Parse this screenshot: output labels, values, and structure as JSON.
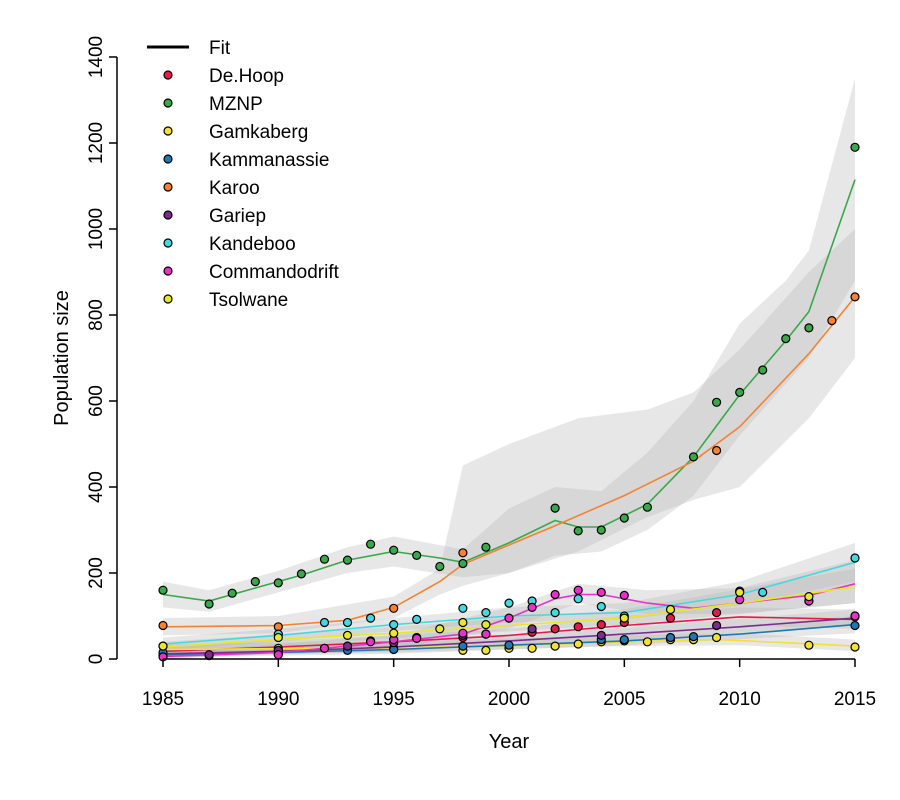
{
  "chart_data": {
    "type": "scatter",
    "title": "",
    "xlabel": "Year",
    "ylabel": "Population size",
    "xlim": [
      1985,
      2015
    ],
    "ylim": [
      0,
      1400
    ],
    "x_ticks": [
      1985,
      1990,
      1995,
      2000,
      2005,
      2010,
      2015
    ],
    "y_ticks": [
      0,
      200,
      400,
      600,
      800,
      1000,
      1200,
      1400
    ],
    "grid": false,
    "legend_position": "top-left",
    "legend_fit_label": "Fit",
    "series": [
      {
        "name": "De.Hoop",
        "color": "#e6194b",
        "points": [
          [
            1985,
            8
          ],
          [
            1987,
            8
          ],
          [
            1990,
            12
          ],
          [
            1992,
            25
          ],
          [
            1993,
            30
          ],
          [
            1994,
            42
          ],
          [
            1995,
            45
          ],
          [
            1996,
            50
          ],
          [
            1998,
            50
          ],
          [
            1999,
            58
          ],
          [
            2001,
            62
          ],
          [
            2002,
            70
          ],
          [
            2003,
            75
          ],
          [
            2004,
            80
          ],
          [
            2005,
            85
          ],
          [
            2007,
            95
          ],
          [
            2009,
            108
          ],
          [
            2015,
            98
          ]
        ],
        "fit": [
          [
            1985,
            18
          ],
          [
            1990,
            28
          ],
          [
            1995,
            40
          ],
          [
            2000,
            55
          ],
          [
            2005,
            78
          ],
          [
            2010,
            98
          ],
          [
            2015,
            92
          ]
        ],
        "band": [
          [
            1985,
            8,
            30
          ],
          [
            1995,
            25,
            55
          ],
          [
            2000,
            40,
            70
          ],
          [
            2005,
            60,
            100
          ],
          [
            2010,
            78,
            120
          ],
          [
            2015,
            70,
            115
          ]
        ]
      },
      {
        "name": "MZNP",
        "color": "#3aa84a",
        "points": [
          [
            1985,
            160
          ],
          [
            1987,
            128
          ],
          [
            1988,
            153
          ],
          [
            1989,
            180
          ],
          [
            1990,
            177
          ],
          [
            1991,
            198
          ],
          [
            1992,
            232
          ],
          [
            1993,
            230
          ],
          [
            1994,
            267
          ],
          [
            1995,
            253
          ],
          [
            1996,
            241
          ],
          [
            1997,
            215
          ],
          [
            1998,
            222
          ],
          [
            1999,
            260
          ],
          [
            2002,
            351
          ],
          [
            2003,
            298
          ],
          [
            2004,
            300
          ],
          [
            2005,
            328
          ],
          [
            2006,
            353
          ],
          [
            2008,
            470
          ],
          [
            2009,
            597
          ],
          [
            2010,
            620
          ],
          [
            2011,
            672
          ],
          [
            2012,
            745
          ],
          [
            2013,
            770
          ],
          [
            2015,
            1190
          ]
        ],
        "fit": [
          [
            1985,
            150
          ],
          [
            1987,
            135
          ],
          [
            1989,
            165
          ],
          [
            1991,
            195
          ],
          [
            1993,
            230
          ],
          [
            1995,
            250
          ],
          [
            1997,
            235
          ],
          [
            1998,
            225
          ],
          [
            2000,
            270
          ],
          [
            2002,
            322
          ],
          [
            2003,
            307
          ],
          [
            2004,
            307
          ],
          [
            2006,
            360
          ],
          [
            2008,
            470
          ],
          [
            2010,
            615
          ],
          [
            2012,
            740
          ],
          [
            2013,
            808
          ],
          [
            2015,
            1115
          ]
        ],
        "band": [
          [
            1985,
            120,
            180
          ],
          [
            1987,
            110,
            160
          ],
          [
            1990,
            155,
            205
          ],
          [
            1993,
            200,
            260
          ],
          [
            1995,
            215,
            285
          ],
          [
            1998,
            190,
            255
          ],
          [
            2000,
            200,
            350
          ],
          [
            2002,
            240,
            400
          ],
          [
            2004,
            250,
            390
          ],
          [
            2006,
            300,
            480
          ],
          [
            2008,
            380,
            600
          ],
          [
            2010,
            520,
            780
          ],
          [
            2012,
            640,
            880
          ],
          [
            2013,
            700,
            950
          ],
          [
            2015,
            880,
            1350
          ]
        ]
      },
      {
        "name": "Gamkaberg",
        "color": "#f5e130",
        "points": [
          [
            1985,
            30
          ],
          [
            1990,
            25
          ],
          [
            1993,
            28
          ],
          [
            1995,
            25
          ],
          [
            1998,
            20
          ],
          [
            1999,
            20
          ],
          [
            2000,
            25
          ],
          [
            2001,
            25
          ],
          [
            2002,
            30
          ],
          [
            2003,
            35
          ],
          [
            2004,
            40
          ],
          [
            2005,
            42
          ],
          [
            2006,
            40
          ],
          [
            2007,
            45
          ],
          [
            2008,
            45
          ],
          [
            2009,
            50
          ],
          [
            2013,
            32
          ],
          [
            2015,
            28
          ]
        ],
        "fit": [
          [
            1985,
            22
          ],
          [
            1995,
            26
          ],
          [
            2000,
            30
          ],
          [
            2005,
            40
          ],
          [
            2009,
            45
          ],
          [
            2012,
            38
          ],
          [
            2015,
            30
          ]
        ],
        "band": [
          [
            1985,
            10,
            35
          ],
          [
            1995,
            15,
            40
          ],
          [
            2005,
            30,
            55
          ],
          [
            2010,
            32,
            60
          ],
          [
            2015,
            18,
            45
          ]
        ]
      },
      {
        "name": "Kammanassie",
        "color": "#1f78b4",
        "points": [
          [
            1985,
            15
          ],
          [
            1990,
            20
          ],
          [
            1993,
            20
          ],
          [
            1995,
            22
          ],
          [
            1998,
            30
          ],
          [
            2000,
            32
          ],
          [
            2004,
            45
          ],
          [
            2005,
            45
          ],
          [
            2007,
            50
          ],
          [
            2008,
            52
          ],
          [
            2015,
            78
          ]
        ],
        "fit": [
          [
            1985,
            10
          ],
          [
            1990,
            15
          ],
          [
            1995,
            22
          ],
          [
            2000,
            32
          ],
          [
            2005,
            42
          ],
          [
            2010,
            58
          ],
          [
            2015,
            80
          ]
        ],
        "band": [
          [
            1985,
            3,
            20
          ],
          [
            1995,
            12,
            32
          ],
          [
            2005,
            32,
            55
          ],
          [
            2015,
            60,
            100
          ]
        ]
      },
      {
        "name": "Karoo",
        "color": "#f58231",
        "points": [
          [
            1985,
            78
          ],
          [
            1990,
            75
          ],
          [
            1995,
            118
          ],
          [
            1998,
            247
          ],
          [
            2009,
            485
          ],
          [
            2014,
            787
          ],
          [
            2015,
            842
          ]
        ],
        "fit": [
          [
            1985,
            75
          ],
          [
            1990,
            78
          ],
          [
            1993,
            90
          ],
          [
            1995,
            120
          ],
          [
            1997,
            180
          ],
          [
            1998,
            220
          ],
          [
            2000,
            265
          ],
          [
            2002,
            310
          ],
          [
            2005,
            380
          ],
          [
            2008,
            460
          ],
          [
            2010,
            540
          ],
          [
            2013,
            710
          ],
          [
            2015,
            842
          ]
        ],
        "band": [
          [
            1985,
            55,
            95
          ],
          [
            1990,
            60,
            100
          ],
          [
            1995,
            95,
            145
          ],
          [
            1997,
            150,
            210
          ],
          [
            1998,
            170,
            450
          ],
          [
            2000,
            200,
            500
          ],
          [
            2003,
            250,
            560
          ],
          [
            2006,
            330,
            580
          ],
          [
            2008,
            370,
            620
          ],
          [
            2010,
            400,
            720
          ],
          [
            2013,
            560,
            900
          ],
          [
            2015,
            700,
            1000
          ]
        ]
      },
      {
        "name": "Gariep",
        "color": "#7b2d8e",
        "points": [
          [
            1987,
            10
          ],
          [
            1990,
            20
          ],
          [
            1993,
            30
          ],
          [
            1995,
            38
          ],
          [
            1998,
            55
          ],
          [
            2001,
            70
          ],
          [
            2004,
            55
          ],
          [
            2009,
            78
          ],
          [
            2013,
            135
          ],
          [
            2015,
            100
          ]
        ],
        "fit": [
          [
            1985,
            12
          ],
          [
            1990,
            18
          ],
          [
            1995,
            28
          ],
          [
            2000,
            42
          ],
          [
            2005,
            58
          ],
          [
            2010,
            75
          ],
          [
            2015,
            95
          ]
        ],
        "band": [
          [
            1985,
            3,
            22
          ],
          [
            1995,
            18,
            40
          ],
          [
            2005,
            45,
            72
          ],
          [
            2015,
            78,
            115
          ]
        ]
      },
      {
        "name": "Kandeboo",
        "color": "#46d8e0",
        "points": [
          [
            1990,
            58
          ],
          [
            1992,
            85
          ],
          [
            1993,
            85
          ],
          [
            1994,
            95
          ],
          [
            1995,
            80
          ],
          [
            1996,
            92
          ],
          [
            1998,
            118
          ],
          [
            1999,
            108
          ],
          [
            2000,
            130
          ],
          [
            2001,
            135
          ],
          [
            2002,
            108
          ],
          [
            2003,
            140
          ],
          [
            2004,
            122
          ],
          [
            2005,
            100
          ],
          [
            2010,
            158
          ],
          [
            2011,
            155
          ],
          [
            2015,
            235
          ]
        ],
        "fit": [
          [
            1985,
            35
          ],
          [
            1990,
            55
          ],
          [
            1995,
            80
          ],
          [
            2000,
            100
          ],
          [
            2005,
            108
          ],
          [
            2010,
            150
          ],
          [
            2015,
            225
          ]
        ],
        "band": [
          [
            1985,
            20,
            50
          ],
          [
            1990,
            40,
            70
          ],
          [
            1995,
            65,
            95
          ],
          [
            2000,
            85,
            120
          ],
          [
            2005,
            92,
            130
          ],
          [
            2010,
            125,
            180
          ],
          [
            2015,
            180,
            270
          ]
        ]
      },
      {
        "name": "Commandodrift",
        "color": "#e632c8",
        "points": [
          [
            1985,
            5
          ],
          [
            1990,
            10
          ],
          [
            1992,
            25
          ],
          [
            1994,
            40
          ],
          [
            1995,
            45
          ],
          [
            1996,
            48
          ],
          [
            1998,
            60
          ],
          [
            1999,
            58
          ],
          [
            2000,
            95
          ],
          [
            2001,
            120
          ],
          [
            2002,
            150
          ],
          [
            2003,
            160
          ],
          [
            2004,
            155
          ],
          [
            2005,
            148
          ],
          [
            2010,
            138
          ],
          [
            2013,
            135
          ],
          [
            2015,
            100
          ]
        ],
        "fit": [
          [
            1985,
            6
          ],
          [
            1990,
            15
          ],
          [
            1995,
            40
          ],
          [
            1998,
            58
          ],
          [
            2000,
            95
          ],
          [
            2002,
            140
          ],
          [
            2003,
            150
          ],
          [
            2004,
            150
          ],
          [
            2006,
            130
          ],
          [
            2008,
            118
          ],
          [
            2010,
            130
          ],
          [
            2013,
            148
          ],
          [
            2015,
            175
          ]
        ],
        "band": [
          [
            1985,
            0,
            15
          ],
          [
            1995,
            25,
            55
          ],
          [
            2000,
            70,
            120
          ],
          [
            2003,
            130,
            175
          ],
          [
            2006,
            105,
            160
          ],
          [
            2010,
            105,
            165
          ],
          [
            2015,
            130,
            230
          ]
        ]
      },
      {
        "name": "Tsolwane",
        "color": "#e8e82a",
        "points": [
          [
            1985,
            30
          ],
          [
            1990,
            50
          ],
          [
            1993,
            55
          ],
          [
            1995,
            60
          ],
          [
            1997,
            70
          ],
          [
            1998,
            85
          ],
          [
            1999,
            80
          ],
          [
            2005,
            95
          ],
          [
            2007,
            115
          ],
          [
            2010,
            155
          ],
          [
            2013,
            145
          ]
        ],
        "fit": [
          [
            1985,
            28
          ],
          [
            1990,
            45
          ],
          [
            1995,
            60
          ],
          [
            2000,
            78
          ],
          [
            2005,
            95
          ],
          [
            2010,
            130
          ],
          [
            2015,
            168
          ]
        ],
        "band": [
          [
            1985,
            15,
            40
          ],
          [
            1995,
            48,
            75
          ],
          [
            2005,
            80,
            115
          ],
          [
            2015,
            130,
            210
          ]
        ]
      }
    ]
  }
}
